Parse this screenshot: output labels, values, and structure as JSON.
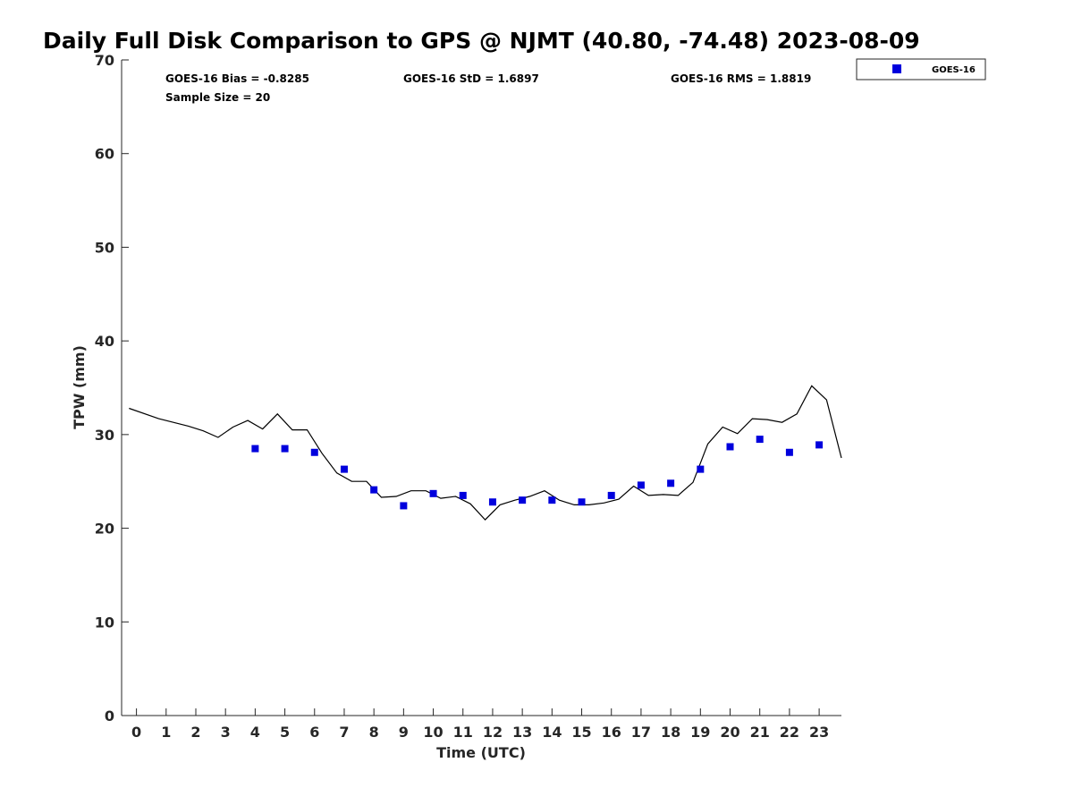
{
  "chart_data": {
    "type": "scatter",
    "title": "Daily Full Disk Comparison to GPS @ NJMT (40.80, -74.48) 2023-08-09",
    "xlabel": "Time (UTC)",
    "ylabel": "TPW (mm)",
    "xlim": [
      -0.5,
      23.75
    ],
    "ylim": [
      0,
      70
    ],
    "xticks": [
      0,
      1,
      2,
      3,
      4,
      5,
      6,
      7,
      8,
      9,
      10,
      11,
      12,
      13,
      14,
      15,
      16,
      17,
      18,
      19,
      20,
      21,
      22,
      23
    ],
    "yticks": [
      0,
      10,
      20,
      30,
      40,
      50,
      60,
      70
    ],
    "grid": false,
    "legend_position": "outside top-right",
    "stats": {
      "bias": "GOES-16 Bias = -0.8285",
      "std": "GOES-16 StD = 1.6897",
      "rms": "GOES-16 RMS = 1.8819",
      "sample": "Sample Size = 20"
    },
    "series": [
      {
        "name": "GOES-16",
        "kind": "scatter",
        "color": "#0000dd",
        "marker": "square",
        "x": [
          4,
          5,
          6,
          7,
          8,
          9,
          10,
          11,
          12,
          13,
          14,
          15,
          16,
          17,
          18,
          19,
          20,
          21,
          22,
          23
        ],
        "y": [
          28.5,
          28.5,
          28.1,
          26.3,
          24.1,
          22.4,
          23.7,
          23.5,
          22.8,
          23.0,
          23.0,
          22.8,
          23.5,
          24.6,
          24.8,
          26.3,
          28.7,
          29.5,
          28.1,
          28.9
        ]
      },
      {
        "kind": "line",
        "color": "#000000",
        "x": [
          -0.25,
          0.75,
          1.75,
          2.25,
          2.75,
          3.25,
          3.75,
          4.25,
          4.75,
          5.25,
          5.75,
          6.25,
          6.75,
          7.25,
          7.75,
          8.25,
          8.75,
          9.25,
          9.75,
          10.25,
          10.75,
          11.25,
          11.75,
          12.25,
          12.75,
          13.25,
          13.75,
          14.25,
          14.75,
          15.25,
          15.75,
          16.25,
          16.75,
          17.25,
          17.75,
          18.25,
          18.75,
          19.25,
          19.75,
          20.25,
          20.75,
          21.25,
          21.75,
          22.25,
          22.75,
          23.25,
          23.75
        ],
        "y": [
          32.8,
          31.7,
          30.9,
          30.4,
          29.7,
          30.8,
          31.5,
          30.6,
          32.2,
          30.5,
          30.5,
          28.0,
          25.9,
          25.0,
          25.0,
          23.3,
          23.4,
          24.0,
          24.0,
          23.2,
          23.4,
          22.6,
          20.9,
          22.5,
          23.0,
          23.4,
          24.0,
          23.0,
          22.5,
          22.5,
          22.7,
          23.1,
          24.5,
          23.5,
          23.6,
          23.5,
          24.9,
          29.0,
          30.8,
          30.1,
          31.7,
          31.6,
          31.3,
          32.2,
          35.2,
          33.7,
          27.5
        ]
      }
    ]
  }
}
